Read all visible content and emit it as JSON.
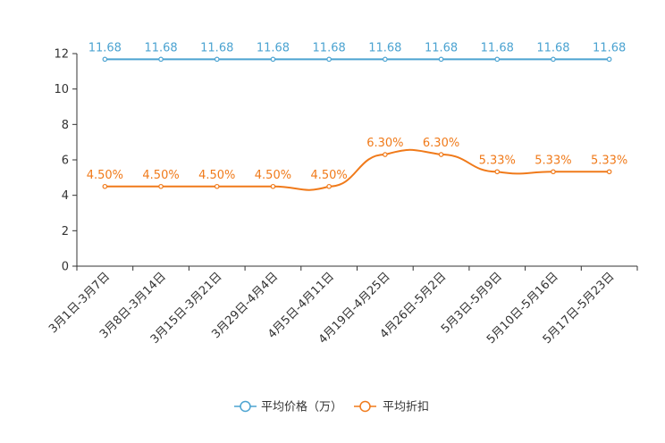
{
  "chart_data": {
    "type": "line",
    "title": "",
    "xlabel": "",
    "ylabel": "",
    "ylim": [
      0,
      12
    ],
    "yticks": [
      0,
      2,
      4,
      6,
      8,
      10,
      12
    ],
    "categories": [
      "3月1日-3月7日",
      "3月8日-3月14日",
      "3月15日-3月21日",
      "3月29日-4月4日",
      "4月5日-4月11日",
      "4月19日-4月25日",
      "4月26日-5月2日",
      "5月3日-5月9日",
      "5月10日-5月16日",
      "5月17日-5月23日"
    ],
    "series": [
      {
        "name": "平均价格（万）",
        "color": "#4ba3d1",
        "values": [
          11.68,
          11.68,
          11.68,
          11.68,
          11.68,
          11.68,
          11.68,
          11.68,
          11.68,
          11.68
        ],
        "labels": [
          "11.68",
          "11.68",
          "11.68",
          "11.68",
          "11.68",
          "11.68",
          "11.68",
          "11.68",
          "11.68",
          "11.68"
        ]
      },
      {
        "name": "平均折扣",
        "color": "#f07a1a",
        "values": [
          4.5,
          4.5,
          4.5,
          4.5,
          4.5,
          6.3,
          6.3,
          5.33,
          5.33,
          5.33
        ],
        "labels": [
          "4.50%",
          "4.50%",
          "4.50%",
          "4.50%",
          "4.50%",
          "6.30%",
          "6.30%",
          "5.33%",
          "5.33%",
          "5.33%"
        ]
      }
    ],
    "legend_position": "bottom-center"
  }
}
